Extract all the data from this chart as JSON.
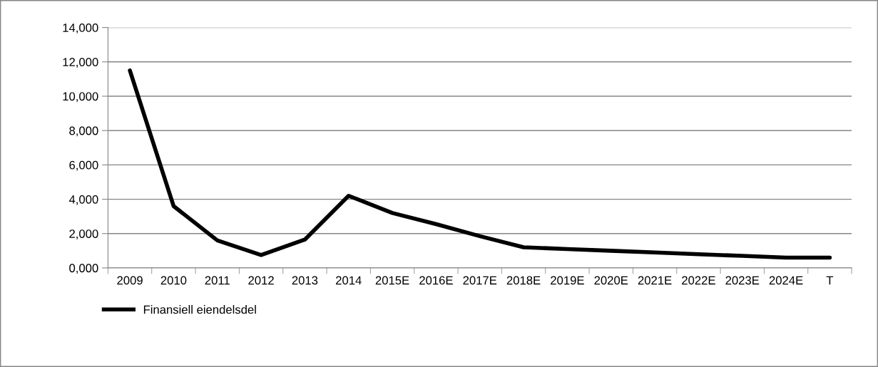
{
  "chart_data": {
    "type": "line",
    "categories": [
      "2009",
      "2010",
      "2011",
      "2012",
      "2013",
      "2014",
      "2015E",
      "2016E",
      "2017E",
      "2018E",
      "2019E",
      "2020E",
      "2021E",
      "2022E",
      "2023E",
      "2024E",
      "T"
    ],
    "series": [
      {
        "name": "Finansiell eiendelsdel",
        "color": "#000000",
        "values": [
          11500,
          3600,
          1600,
          750,
          1650,
          4200,
          3200,
          2550,
          1850,
          1200,
          1100,
          1000,
          900,
          800,
          700,
          600,
          600
        ]
      }
    ],
    "ylim": [
      0,
      14000
    ],
    "yticks": [
      {
        "value": 0,
        "label": "0,000"
      },
      {
        "value": 2000,
        "label": "2,000"
      },
      {
        "value": 4000,
        "label": "4,000"
      },
      {
        "value": 6000,
        "label": "6,000"
      },
      {
        "value": 8000,
        "label": "8,000"
      },
      {
        "value": 10000,
        "label": "10,000"
      },
      {
        "value": 12000,
        "label": "12,000"
      },
      {
        "value": 14000,
        "label": "14,000"
      }
    ],
    "grid": "y",
    "legend": "bottom left",
    "marker": "none",
    "line_style": "solid"
  }
}
